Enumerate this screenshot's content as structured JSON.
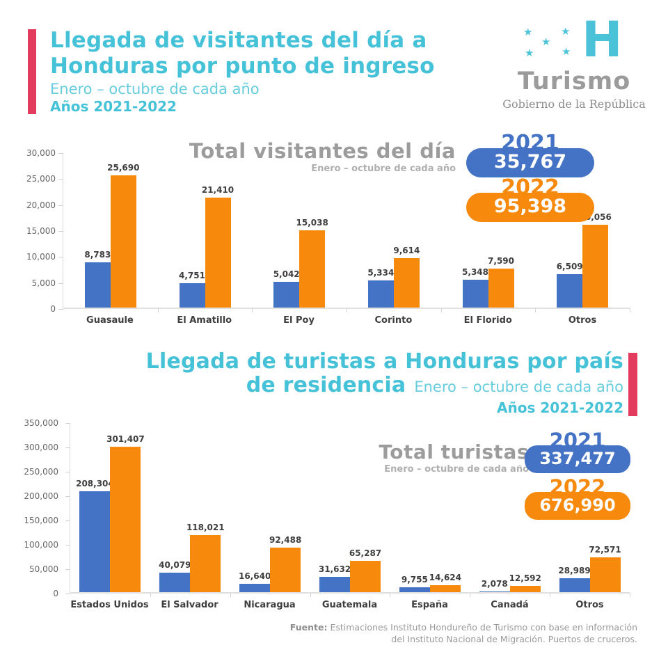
{
  "palette": {
    "blue": "#4472C4",
    "orange": "#F7890D",
    "cyan": "#45C2D7",
    "cyan_light": "#67CDDE",
    "red_accent": "#E23B5E",
    "gray_title": "#9C9C9C",
    "label_dark": "#3E3E3E"
  },
  "header": {
    "title_line1": "Llegada de visitantes del día a",
    "title_line2": "Honduras por punto de ingreso",
    "subtitle": "Enero – octubre de cada año",
    "years": "Años 2021-2022"
  },
  "logo": {
    "star": "★",
    "h": "H",
    "brand": "Turismo",
    "tagline": "Gobierno de la República"
  },
  "section2": {
    "title_line1": "Llegada de turistas a Honduras por país",
    "title_line2": "de residencia",
    "subtitle": "Enero – octubre de cada año",
    "years": "Años 2021-2022"
  },
  "chart_data": [
    {
      "type": "bar",
      "title": "Total visitantes del día",
      "subtitle": "Enero – octubre de cada año",
      "categories": [
        "Guasaule",
        "El Amatillo",
        "El Poy",
        "Corinto",
        "El Florido",
        "Otros"
      ],
      "series": [
        {
          "name": "2021",
          "color": "#4472C4",
          "total": 35767,
          "total_label": "35,767",
          "values": [
            8783,
            4751,
            5042,
            5334,
            5348,
            6509
          ],
          "labels": [
            "8,783",
            "4,751",
            "5,042",
            "5,334",
            "5,348",
            "6,509"
          ]
        },
        {
          "name": "2022",
          "color": "#F7890D",
          "total": 95398,
          "total_label": "95,398",
          "values": [
            25690,
            21410,
            15038,
            9614,
            7590,
            16056
          ],
          "labels": [
            "25,690",
            "21,410",
            "15,038",
            "9,614",
            "7,590",
            "16,056"
          ]
        }
      ],
      "xlabel": "",
      "ylabel": "",
      "ylim": [
        0,
        30000
      ],
      "yticks": [
        "30,000",
        "25,000",
        "20,000",
        "15,000",
        "10,000",
        "5,000",
        "0"
      ],
      "grid": false,
      "legend_position": "top-right badges"
    },
    {
      "type": "bar",
      "title": "Total turistas",
      "subtitle": "Enero – octubre de cada año",
      "categories": [
        "Estados Unidos",
        "El Salvador",
        "Nicaragua",
        "Guatemala",
        "España",
        "Canadá",
        "Otros"
      ],
      "series": [
        {
          "name": "2021",
          "color": "#4472C4",
          "total": 337477,
          "total_label": "337,477",
          "values": [
            208304,
            40079,
            16640,
            31632,
            9755,
            2078,
            28989
          ],
          "labels": [
            "208,304",
            "40,079",
            "16,640",
            "31,632",
            "9,755",
            "2,078",
            "28,989"
          ]
        },
        {
          "name": "2022",
          "color": "#F7890D",
          "total": 676990,
          "total_label": "676,990",
          "values": [
            301407,
            118021,
            92488,
            65287,
            14624,
            12592,
            72571
          ],
          "labels": [
            "301,407",
            "118,021",
            "92,488",
            "65,287",
            "14,624",
            "12,592",
            "72,571"
          ]
        }
      ],
      "xlabel": "",
      "ylabel": "",
      "ylim": [
        0,
        350000
      ],
      "yticks": [
        "350,000",
        "300,000",
        "250,000",
        "200,000",
        "150,000",
        "100,000",
        "50,000",
        "0"
      ],
      "grid": false,
      "legend_position": "right badges"
    }
  ],
  "footer": {
    "prefix": "Fuente:",
    "line1": "Estimaciones Instituto Hondureño de Turismo con base en información",
    "line2": "del Instituto Nacional de Migración. Puertos de cruceros."
  }
}
